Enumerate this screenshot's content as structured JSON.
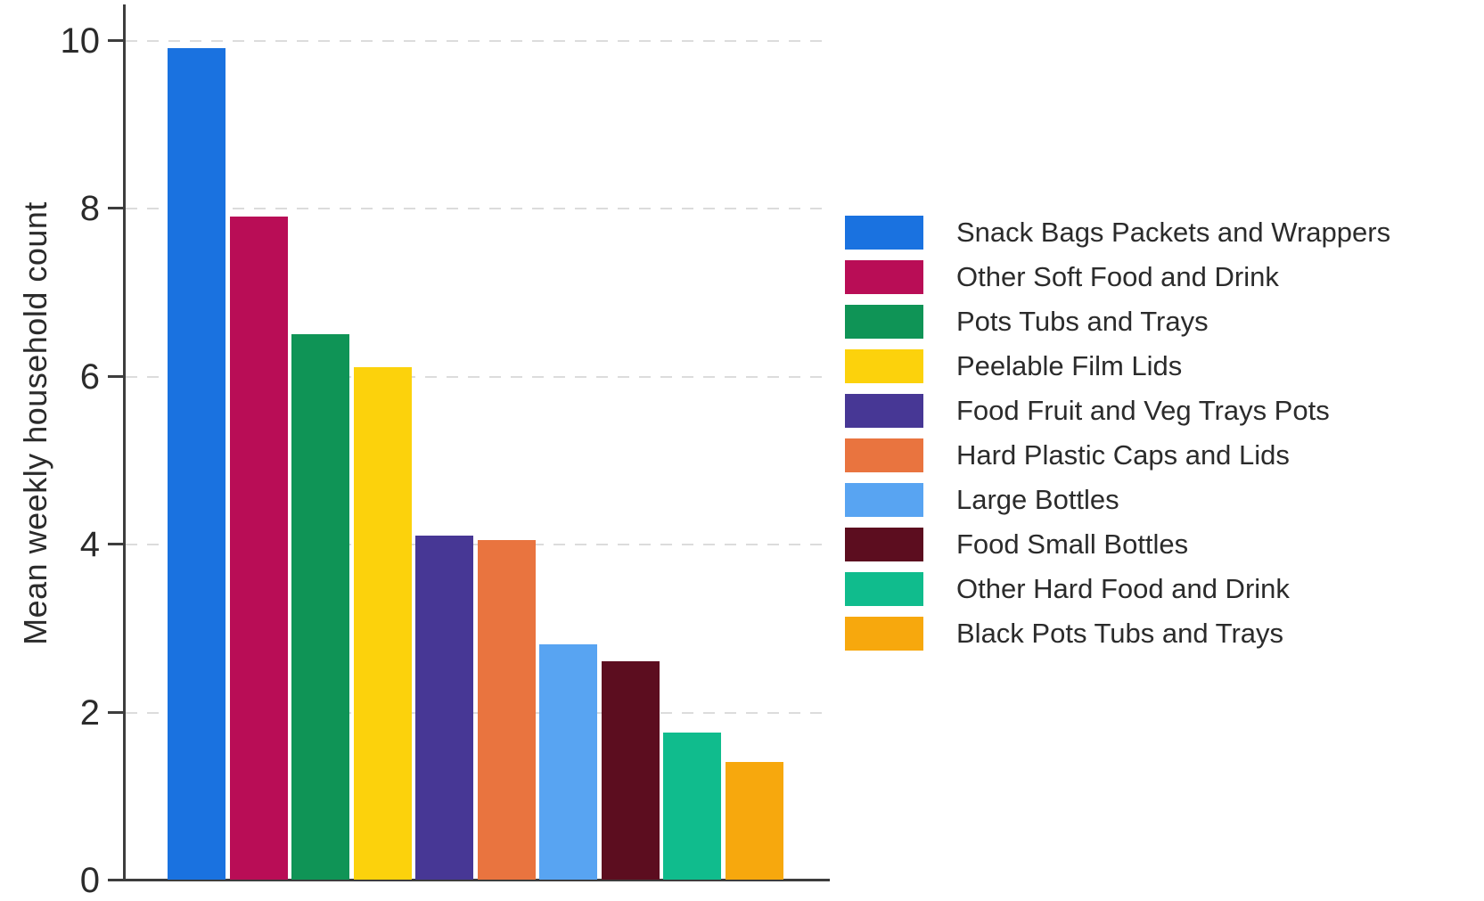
{
  "chart_data": {
    "type": "bar",
    "title": "",
    "xlabel": "",
    "ylabel": "Mean weekly household count",
    "ylim": [
      0,
      10
    ],
    "yticks": [
      0,
      2,
      4,
      6,
      8,
      10
    ],
    "grid": "horizontal dashed gridlines at y = 2, 4, 6, 8, 10",
    "legend_position": "right",
    "categories": [
      "Snack Bags Packets and Wrappers",
      "Other Soft Food and Drink",
      "Pots Tubs and Trays",
      "Peelable Film Lids",
      "Food Fruit and Veg Trays Pots",
      "Hard Plastic Caps and Lids",
      "Large Bottles",
      "Food Small Bottles",
      "Other Hard Food and Drink",
      "Black Pots Tubs and Trays"
    ],
    "values": [
      9.9,
      7.9,
      6.5,
      6.1,
      4.1,
      4.05,
      2.8,
      2.6,
      1.75,
      1.4
    ],
    "bar_colors": [
      "#1a72e0",
      "#b90d56",
      "#0f9456",
      "#fcd20c",
      "#473795",
      "#e9743f",
      "#58a4f2",
      "#5c0d1f",
      "#10bc8d",
      "#f7a80d"
    ],
    "style_colors": {
      "axis": "#3d3d3d",
      "grid": "#dcdcdc",
      "text": "#2b2b2b",
      "background": "#ffffff"
    }
  }
}
